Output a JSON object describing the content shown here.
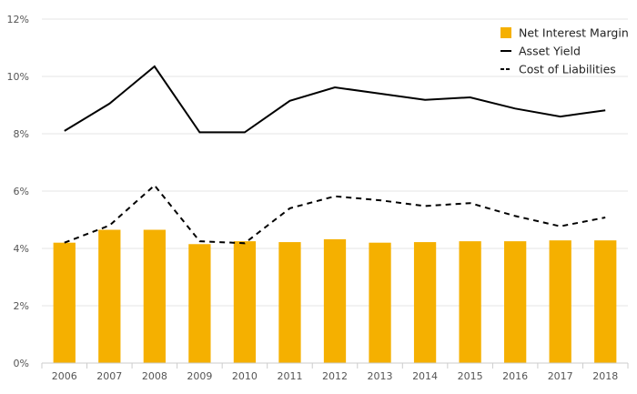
{
  "chart_data": {
    "type": "bar",
    "categories": [
      "2006",
      "2007",
      "2008",
      "2009",
      "2010",
      "2011",
      "2012",
      "2013",
      "2014",
      "2015",
      "2016",
      "2017",
      "2018"
    ],
    "series": [
      {
        "name": "Net Interest Margin",
        "type": "bar",
        "color": "#f5b000",
        "values": [
          4.2,
          4.65,
          4.65,
          4.15,
          4.25,
          4.22,
          4.32,
          4.2,
          4.22,
          4.25,
          4.25,
          4.28,
          4.28
        ]
      },
      {
        "name": "Asset Yield",
        "type": "line",
        "style": "solid",
        "color": "#000000",
        "values": [
          8.1,
          9.05,
          10.35,
          8.05,
          8.05,
          9.15,
          9.62,
          9.4,
          9.18,
          9.27,
          8.88,
          8.6,
          8.82
        ]
      },
      {
        "name": "Cost of Liabilities",
        "type": "line",
        "style": "dashed",
        "color": "#000000",
        "values": [
          4.2,
          4.8,
          6.2,
          4.25,
          4.18,
          5.4,
          5.82,
          5.68,
          5.48,
          5.58,
          5.13,
          4.77,
          5.08
        ]
      }
    ],
    "yticks": [
      "0%",
      "2%",
      "4%",
      "6%",
      "8%",
      "10%",
      "12%"
    ],
    "ylim": [
      0,
      12
    ],
    "grid": true,
    "legend_position": "top-right"
  }
}
